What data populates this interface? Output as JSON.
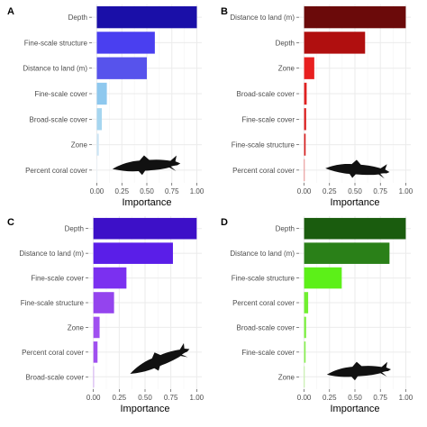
{
  "chart_data": [
    {
      "type": "bar",
      "orientation": "horizontal",
      "panel_label": "A",
      "categories": [
        "Depth",
        "Fine-scale structure",
        "Distance to land (m)",
        "Fine-scale cover",
        "Broad-scale cover",
        "Zone",
        "Percent coral cover"
      ],
      "values": [
        1.0,
        0.58,
        0.5,
        0.1,
        0.05,
        0.02,
        0.0
      ],
      "colors": [
        "#1a0fa8",
        "#4a3ff0",
        "#5753ec",
        "#8ec8ee",
        "#a6d6f0",
        "#cde6f5",
        "#eaf3fb"
      ],
      "xlabel": "Importance",
      "xlim": [
        0,
        1
      ],
      "xticks": [
        "0.00",
        "0.25",
        "0.50",
        "0.75",
        "1.00"
      ],
      "grid": true,
      "silhouette": "shark-silhouette"
    },
    {
      "type": "bar",
      "orientation": "horizontal",
      "panel_label": "B",
      "categories": [
        "Distance to land (m)",
        "Depth",
        "Zone",
        "Broad-scale cover",
        "Fine-scale cover",
        "Fine-scale structure",
        "Percent coral cover"
      ],
      "values": [
        1.0,
        0.6,
        0.1,
        0.025,
        0.02,
        0.015,
        0.0
      ],
      "colors": [
        "#6b0a0a",
        "#b00f0f",
        "#e82020",
        "#e02020",
        "#dc2020",
        "#d82020",
        "#e85050"
      ],
      "xlabel": "Importance",
      "xlim": [
        0,
        1
      ],
      "xticks": [
        "0.00",
        "0.25",
        "0.50",
        "0.75",
        "1.00"
      ],
      "grid": true,
      "silhouette": "shark-silhouette"
    },
    {
      "type": "bar",
      "orientation": "horizontal",
      "panel_label": "C",
      "categories": [
        "Depth",
        "Distance to land (m)",
        "Fine-scale cover",
        "Fine-scale structure",
        "Zone",
        "Percent coral cover",
        "Broad-scale cover"
      ],
      "values": [
        1.0,
        0.77,
        0.32,
        0.2,
        0.06,
        0.04,
        0.0
      ],
      "colors": [
        "#3d10c8",
        "#5a1ee8",
        "#7b30f0",
        "#9444ee",
        "#a050f0",
        "#a050f0",
        "#c080f5"
      ],
      "xlabel": "Importance",
      "xlim": [
        0,
        1
      ],
      "xticks": [
        "0.00",
        "0.25",
        "0.50",
        "0.75",
        "1.00"
      ],
      "grid": true,
      "silhouette": "shark-silhouette"
    },
    {
      "type": "bar",
      "orientation": "horizontal",
      "panel_label": "D",
      "categories": [
        "Depth",
        "Distance to land (m)",
        "Fine-scale structure",
        "Percent coral cover",
        "Broad-scale cover",
        "Fine-scale cover",
        "Zone"
      ],
      "values": [
        1.0,
        0.84,
        0.37,
        0.04,
        0.02,
        0.015,
        0.0
      ],
      "colors": [
        "#1a5c0e",
        "#2a8018",
        "#5cf018",
        "#70f030",
        "#7cf040",
        "#88f050",
        "#a0f070"
      ],
      "xlabel": "Importance",
      "xlim": [
        0,
        1
      ],
      "xticks": [
        "0.00",
        "0.25",
        "0.50",
        "0.75",
        "1.00"
      ],
      "grid": true,
      "silhouette": "shark-silhouette"
    }
  ],
  "style": {
    "panel_background": "#ffffff",
    "grid_color": "#ebebeb",
    "axis_color": "#333333",
    "text_color": "#4d4d4d"
  }
}
